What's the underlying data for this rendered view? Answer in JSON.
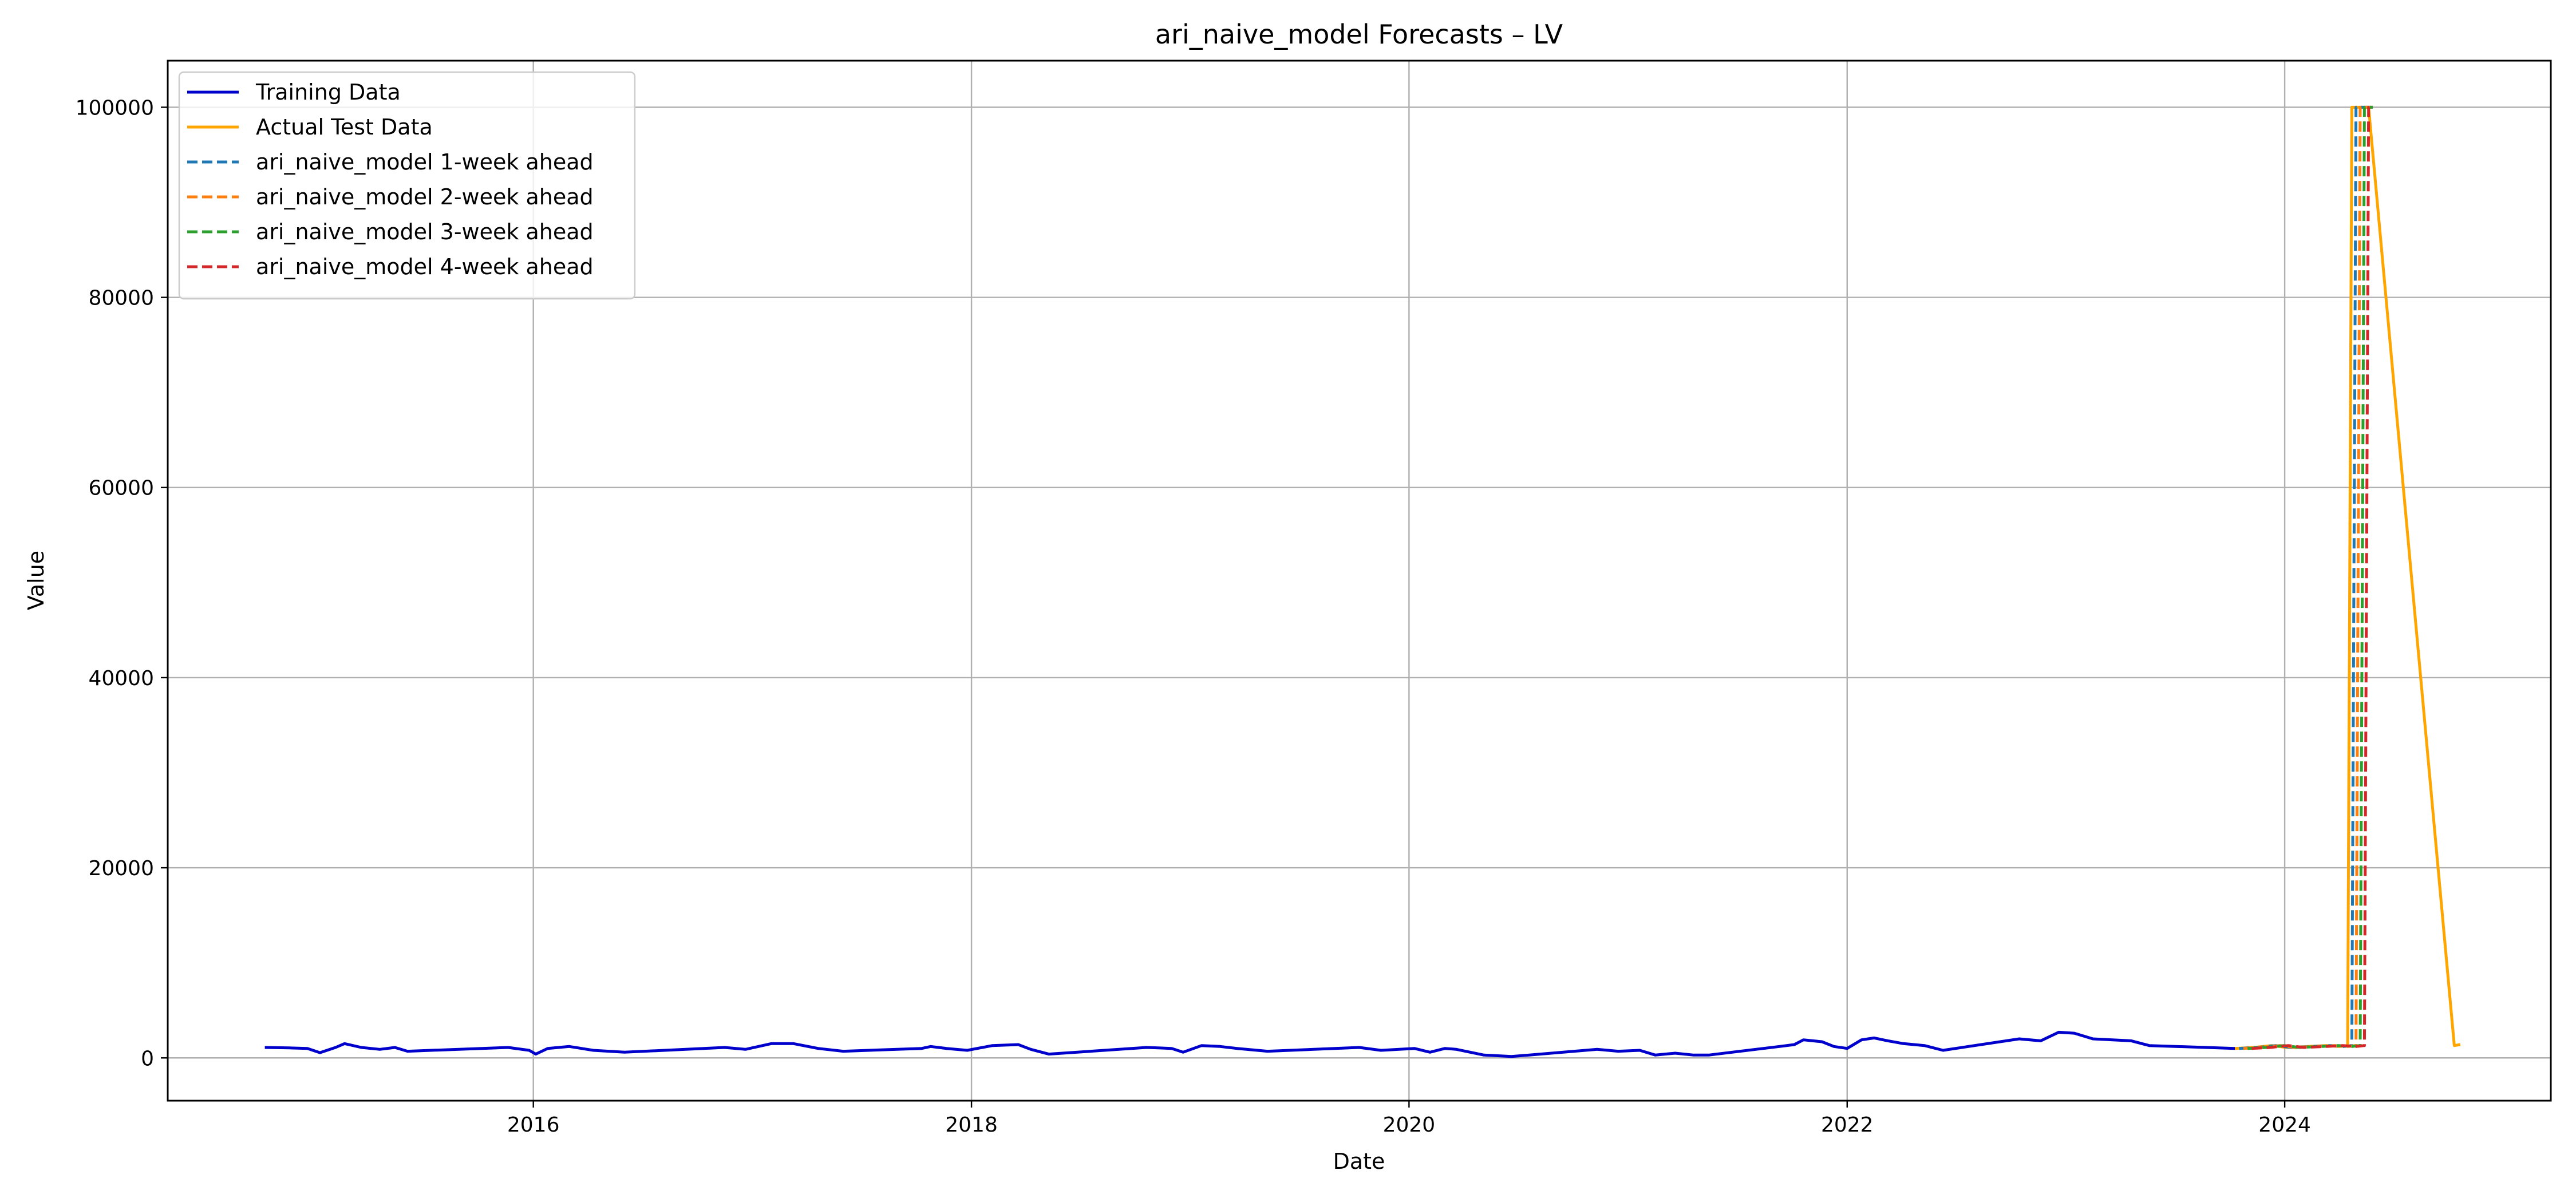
{
  "chart_data": {
    "type": "line",
    "title": "ari_naive_model Forecasts – LV",
    "xlabel": "Date",
    "ylabel": "Value",
    "x_type": "date",
    "xlim": [
      "2014-05-01",
      "2025-03-20"
    ],
    "ylim": [
      -4500,
      104900
    ],
    "x_ticks": [
      {
        "date": "2016-01-01",
        "label": "2016"
      },
      {
        "date": "2018-01-01",
        "label": "2018"
      },
      {
        "date": "2020-01-01",
        "label": "2020"
      },
      {
        "date": "2022-01-01",
        "label": "2022"
      },
      {
        "date": "2024-01-01",
        "label": "2024"
      }
    ],
    "y_ticks": [
      0,
      20000,
      40000,
      60000,
      80000,
      100000
    ],
    "grid": true,
    "legend_position": "top-left",
    "series": [
      {
        "name": "Training Data",
        "color": "#0000cc",
        "style": "solid",
        "points": [
          [
            "2014-10-10",
            1100
          ],
          [
            "2014-11-20",
            1050
          ],
          [
            "2014-12-20",
            1000
          ],
          [
            "2015-01-10",
            550
          ],
          [
            "2015-02-05",
            1100
          ],
          [
            "2015-02-20",
            1500
          ],
          [
            "2015-03-20",
            1100
          ],
          [
            "2015-04-20",
            900
          ],
          [
            "2015-05-15",
            1100
          ],
          [
            "2015-06-05",
            700
          ],
          [
            "2015-11-20",
            1100
          ],
          [
            "2015-12-25",
            800
          ],
          [
            "2016-01-05",
            400
          ],
          [
            "2016-01-25",
            1000
          ],
          [
            "2016-03-01",
            1200
          ],
          [
            "2016-04-10",
            800
          ],
          [
            "2016-06-01",
            600
          ],
          [
            "2016-11-15",
            1100
          ],
          [
            "2016-12-20",
            900
          ],
          [
            "2017-02-01",
            1500
          ],
          [
            "2017-03-10",
            1500
          ],
          [
            "2017-04-20",
            1000
          ],
          [
            "2017-06-01",
            700
          ],
          [
            "2017-10-10",
            1000
          ],
          [
            "2017-10-25",
            1200
          ],
          [
            "2017-11-20",
            1000
          ],
          [
            "2017-12-25",
            800
          ],
          [
            "2018-02-05",
            1300
          ],
          [
            "2018-03-20",
            1400
          ],
          [
            "2018-04-10",
            900
          ],
          [
            "2018-05-10",
            400
          ],
          [
            "2018-10-20",
            1100
          ],
          [
            "2018-12-01",
            1000
          ],
          [
            "2018-12-20",
            600
          ],
          [
            "2019-01-20",
            1300
          ],
          [
            "2019-02-20",
            1200
          ],
          [
            "2019-03-20",
            1000
          ],
          [
            "2019-05-10",
            700
          ],
          [
            "2019-10-10",
            1100
          ],
          [
            "2019-11-15",
            800
          ],
          [
            "2020-01-10",
            1000
          ],
          [
            "2020-02-05",
            600
          ],
          [
            "2020-03-01",
            1000
          ],
          [
            "2020-03-20",
            900
          ],
          [
            "2020-05-05",
            300
          ],
          [
            "2020-06-20",
            150
          ],
          [
            "2020-11-10",
            900
          ],
          [
            "2020-12-15",
            700
          ],
          [
            "2021-01-20",
            800
          ],
          [
            "2021-02-15",
            300
          ],
          [
            "2021-03-20",
            500
          ],
          [
            "2021-04-20",
            300
          ],
          [
            "2021-05-15",
            300
          ],
          [
            "2021-09-10",
            1200
          ],
          [
            "2021-10-05",
            1400
          ],
          [
            "2021-10-20",
            1900
          ],
          [
            "2021-11-20",
            1700
          ],
          [
            "2021-12-10",
            1200
          ],
          [
            "2022-01-01",
            1000
          ],
          [
            "2022-01-25",
            1900
          ],
          [
            "2022-02-15",
            2100
          ],
          [
            "2022-03-10",
            1800
          ],
          [
            "2022-04-05",
            1500
          ],
          [
            "2022-05-10",
            1300
          ],
          [
            "2022-06-10",
            800
          ],
          [
            "2022-10-15",
            2000
          ],
          [
            "2022-11-20",
            1800
          ],
          [
            "2022-12-20",
            2700
          ],
          [
            "2023-01-15",
            2600
          ],
          [
            "2023-02-15",
            2000
          ],
          [
            "2023-03-20",
            1900
          ],
          [
            "2023-04-20",
            1800
          ],
          [
            "2023-05-20",
            1300
          ],
          [
            "2023-10-10",
            1000
          ]
        ]
      },
      {
        "name": "Actual Test Data",
        "color": "#ffa500",
        "style": "solid",
        "points": [
          [
            "2023-10-10",
            1000
          ],
          [
            "2023-11-10",
            1100
          ],
          [
            "2023-12-10",
            1300
          ],
          [
            "2024-01-05",
            1100
          ],
          [
            "2024-02-10",
            1200
          ],
          [
            "2024-03-10",
            1300
          ],
          [
            "2024-04-01",
            1200
          ],
          [
            "2024-04-15",
            1300
          ],
          [
            "2024-04-22",
            100000
          ],
          [
            "2024-05-20",
            100000
          ],
          [
            "2024-10-10",
            1300
          ],
          [
            "2024-10-20",
            1400
          ]
        ]
      },
      {
        "name": "ari_naive_model 1-week ahead",
        "color": "#1f77b4",
        "style": "dashed",
        "points": [
          [
            "2023-10-17",
            1000
          ],
          [
            "2023-11-17",
            1100
          ],
          [
            "2023-12-17",
            1300
          ],
          [
            "2024-01-12",
            1100
          ],
          [
            "2024-02-17",
            1200
          ],
          [
            "2024-03-17",
            1300
          ],
          [
            "2024-04-08",
            1200
          ],
          [
            "2024-04-22",
            1300
          ],
          [
            "2024-04-29",
            100000
          ],
          [
            "2024-05-27",
            100000
          ]
        ]
      },
      {
        "name": "ari_naive_model 2-week ahead",
        "color": "#ff7f0e",
        "style": "dashed",
        "points": [
          [
            "2023-10-24",
            1000
          ],
          [
            "2023-11-24",
            1100
          ],
          [
            "2023-12-24",
            1300
          ],
          [
            "2024-01-19",
            1100
          ],
          [
            "2024-02-24",
            1200
          ],
          [
            "2024-03-24",
            1300
          ],
          [
            "2024-04-15",
            1200
          ],
          [
            "2024-04-29",
            1300
          ],
          [
            "2024-05-06",
            100000
          ],
          [
            "2024-05-27",
            100000
          ]
        ]
      },
      {
        "name": "ari_naive_model 3-week ahead",
        "color": "#2ca02c",
        "style": "dashed",
        "points": [
          [
            "2023-10-31",
            1000
          ],
          [
            "2023-12-01",
            1100
          ],
          [
            "2023-12-31",
            1300
          ],
          [
            "2024-01-26",
            1100
          ],
          [
            "2024-03-02",
            1200
          ],
          [
            "2024-03-31",
            1300
          ],
          [
            "2024-04-22",
            1200
          ],
          [
            "2024-05-06",
            1300
          ],
          [
            "2024-05-13",
            100000
          ],
          [
            "2024-05-27",
            100000
          ]
        ]
      },
      {
        "name": "ari_naive_model 4-week ahead",
        "color": "#d62728",
        "style": "dashed",
        "points": [
          [
            "2023-11-07",
            1000
          ],
          [
            "2023-12-08",
            1100
          ],
          [
            "2024-01-07",
            1300
          ],
          [
            "2024-02-02",
            1100
          ],
          [
            "2024-03-09",
            1200
          ],
          [
            "2024-04-07",
            1300
          ],
          [
            "2024-04-29",
            1200
          ],
          [
            "2024-05-13",
            1300
          ],
          [
            "2024-05-20",
            100000
          ],
          [
            "2024-05-27",
            100000
          ]
        ]
      }
    ]
  }
}
